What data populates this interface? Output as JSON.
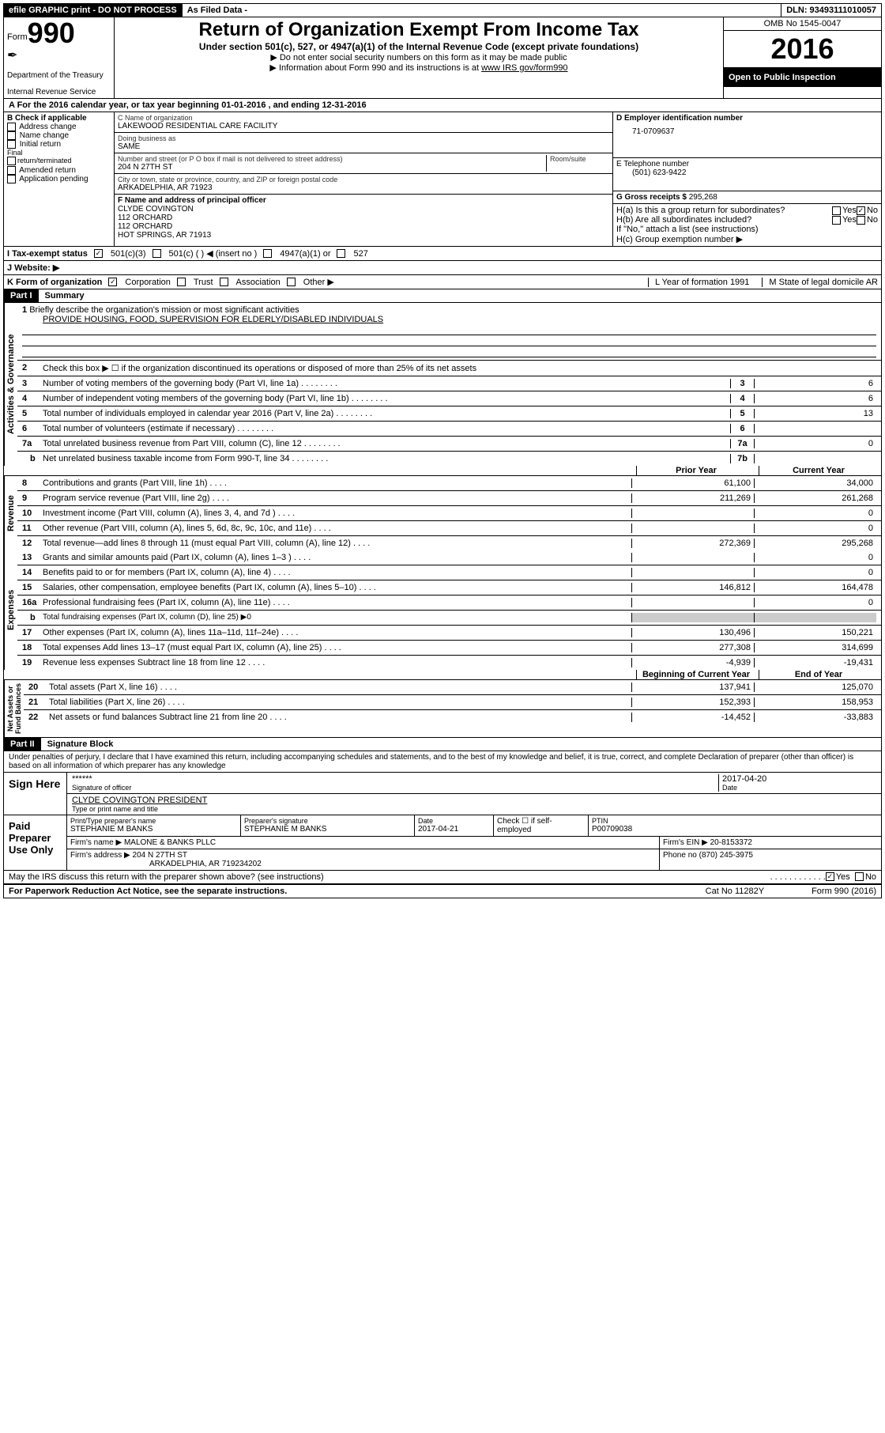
{
  "topbar": {
    "left": "efile GRAPHIC print - DO NOT PROCESS",
    "mid": "As Filed Data -",
    "right": "DLN: 93493111010057"
  },
  "header": {
    "form_prefix": "Form",
    "form_number": "990",
    "dept1": "Department of the Treasury",
    "dept2": "Internal Revenue Service",
    "title": "Return of Organization Exempt From Income Tax",
    "subtitle": "Under section 501(c), 527, or 4947(a)(1) of the Internal Revenue Code (except private foundations)",
    "note1": "▶ Do not enter social security numbers on this form as it may be made public",
    "note2": "▶ Information about Form 990 and its instructions is at ",
    "note2_link": "www IRS gov/form990",
    "omb": "OMB No  1545-0047",
    "year": "2016",
    "open": "Open to Public Inspection"
  },
  "row_a": "A   For the 2016 calendar year, or tax year beginning 01-01-2016   , and ending 12-31-2016",
  "section_b": {
    "b_label": "B Check if applicable",
    "checks": [
      "Address change",
      "Name change",
      "Initial return",
      "Final return/terminated",
      "Amended return",
      "Application pending"
    ],
    "c_name_label": "C Name of organization",
    "c_name": "LAKEWOOD RESIDENTIAL CARE FACILITY",
    "dba_label": "Doing business as",
    "dba": "SAME",
    "street_label": "Number and street (or P O  box if mail is not delivered to street address)",
    "room_label": "Room/suite",
    "street": "204 N 27TH ST",
    "city_label": "City or town, state or province, country, and ZIP or foreign postal code",
    "city": "ARKADELPHIA, AR  71923",
    "d_label": "D Employer identification number",
    "d_value": "71-0709637",
    "e_label": "E Telephone number",
    "e_value": "(501) 623-9422",
    "g_label": "G Gross receipts $",
    "g_value": "295,268",
    "f_label": "F  Name and address of principal officer",
    "f_name": "CLYDE COVINGTON",
    "f_addr1": "112 ORCHARD",
    "f_addr2": "112 ORCHARD",
    "f_city": "HOT SPRINGS, AR  71913",
    "ha_label": "H(a)  Is this a group return for subordinates?",
    "hb_label": "H(b)  Are all subordinates included?",
    "h_note": "If \"No,\" attach a list  (see instructions)",
    "hc_label": "H(c)  Group exemption number ▶"
  },
  "row_i": {
    "label": "I   Tax-exempt status",
    "opts": [
      "501(c)(3)",
      "501(c) (   ) ◀ (insert no )",
      "4947(a)(1) or",
      "527"
    ]
  },
  "row_j": {
    "label": "J   Website: ▶"
  },
  "row_k": {
    "label": "K Form of organization",
    "opts": [
      "Corporation",
      "Trust",
      "Association",
      "Other ▶"
    ],
    "l_label": "L Year of formation  1991",
    "m_label": "M State of legal domicile  AR"
  },
  "part1": {
    "header": "Part I",
    "title": "Summary",
    "l1": "Briefly describe the organization's mission or most significant activities",
    "l1_text": "PROVIDE HOUSING, FOOD, SUPERVISION FOR ELDERLY/DISABLED INDIVIDUALS",
    "l2": "Check this box ▶ ☐  if the organization discontinued its operations or disposed of more than 25% of its net assets",
    "governance": [
      {
        "n": "3",
        "d": "Number of voting members of the governing body (Part VI, line 1a)",
        "nc": "3",
        "v": "6"
      },
      {
        "n": "4",
        "d": "Number of independent voting members of the governing body (Part VI, line 1b)",
        "nc": "4",
        "v": "6"
      },
      {
        "n": "5",
        "d": "Total number of individuals employed in calendar year 2016 (Part V, line 2a)",
        "nc": "5",
        "v": "13"
      },
      {
        "n": "6",
        "d": "Total number of volunteers (estimate if necessary)",
        "nc": "6",
        "v": ""
      },
      {
        "n": "7a",
        "d": "Total unrelated business revenue from Part VIII, column (C), line 12",
        "nc": "7a",
        "v": "0"
      },
      {
        "n": "b",
        "d": "Net unrelated business taxable income from Form 990-T, line 34",
        "nc": "7b",
        "v": "",
        "sub": true
      }
    ],
    "col_prior": "Prior Year",
    "col_current": "Current Year",
    "revenue": [
      {
        "n": "8",
        "d": "Contributions and grants (Part VIII, line 1h)",
        "p": "61,100",
        "c": "34,000"
      },
      {
        "n": "9",
        "d": "Program service revenue (Part VIII, line 2g)",
        "p": "211,269",
        "c": "261,268"
      },
      {
        "n": "10",
        "d": "Investment income (Part VIII, column (A), lines 3, 4, and 7d )",
        "p": "",
        "c": "0"
      },
      {
        "n": "11",
        "d": "Other revenue (Part VIII, column (A), lines 5, 6d, 8c, 9c, 10c, and 11e)",
        "p": "",
        "c": "0"
      },
      {
        "n": "12",
        "d": "Total revenue—add lines 8 through 11 (must equal Part VIII, column (A), line 12)",
        "p": "272,369",
        "c": "295,268"
      }
    ],
    "expenses": [
      {
        "n": "13",
        "d": "Grants and similar amounts paid (Part IX, column (A), lines 1–3 )",
        "p": "",
        "c": "0"
      },
      {
        "n": "14",
        "d": "Benefits paid to or for members (Part IX, column (A), line 4)",
        "p": "",
        "c": "0"
      },
      {
        "n": "15",
        "d": "Salaries, other compensation, employee benefits (Part IX, column (A), lines 5–10)",
        "p": "146,812",
        "c": "164,478"
      },
      {
        "n": "16a",
        "d": "Professional fundraising fees (Part IX, column (A), line 11e)",
        "p": "",
        "c": "0"
      },
      {
        "n": "b",
        "d": "Total fundraising expenses (Part IX, column (D), line 25) ▶0",
        "shade": true,
        "sub": true
      },
      {
        "n": "17",
        "d": "Other expenses (Part IX, column (A), lines 11a–11d, 11f–24e)",
        "p": "130,496",
        "c": "150,221"
      },
      {
        "n": "18",
        "d": "Total expenses  Add lines 13–17 (must equal Part IX, column (A), line 25)",
        "p": "277,308",
        "c": "314,699"
      },
      {
        "n": "19",
        "d": "Revenue less expenses  Subtract line 18 from line 12",
        "p": "-4,939",
        "c": "-19,431"
      }
    ],
    "col_begin": "Beginning of Current Year",
    "col_end": "End of Year",
    "netassets": [
      {
        "n": "20",
        "d": "Total assets (Part X, line 16)",
        "p": "137,941",
        "c": "125,070"
      },
      {
        "n": "21",
        "d": "Total liabilities (Part X, line 26)",
        "p": "152,393",
        "c": "158,953"
      },
      {
        "n": "22",
        "d": "Net assets or fund balances  Subtract line 21 from line 20",
        "p": "-14,452",
        "c": "-33,883"
      }
    ]
  },
  "part2": {
    "header": "Part II",
    "title": "Signature Block",
    "perjury": "Under penalties of perjury, I declare that I have examined this return, including accompanying schedules and statements, and to the best of my knowledge and belief, it is true, correct, and complete  Declaration of preparer (other than officer) is based on all information of which preparer has any knowledge",
    "sign_here": "Sign Here",
    "sig_stars": "******",
    "sig_officer_label": "Signature of officer",
    "sig_date": "2017-04-20",
    "sig_date_label": "Date",
    "sig_name": "CLYDE COVINGTON PRESIDENT",
    "sig_name_label": "Type or print name and title",
    "paid_label": "Paid Preparer Use Only",
    "prep_name_label": "Print/Type preparer's name",
    "prep_name": "STEPHANIE M BANKS",
    "prep_sig_label": "Preparer's signature",
    "prep_sig": "STEPHANIE M BANKS",
    "prep_date_label": "Date",
    "prep_date": "2017-04-21",
    "check_self": "Check ☐ if self-employed",
    "ptin_label": "PTIN",
    "ptin": "P00709038",
    "firm_name_label": "Firm's name    ▶",
    "firm_name": "MALONE & BANKS PLLC",
    "firm_ein_label": "Firm's EIN ▶",
    "firm_ein": "20-8153372",
    "firm_addr_label": "Firm's address ▶",
    "firm_addr": "204 N 27TH ST",
    "firm_city": "ARKADELPHIA, AR  719234202",
    "phone_label": "Phone no",
    "phone": "(870) 245-3975",
    "discuss": "May the IRS discuss this return with the preparer shown above? (see instructions)",
    "yes": "Yes",
    "no": "No"
  },
  "footer": {
    "left": "For Paperwork Reduction Act Notice, see the separate instructions.",
    "mid": "Cat No 11282Y",
    "right": "Form 990 (2016)"
  }
}
